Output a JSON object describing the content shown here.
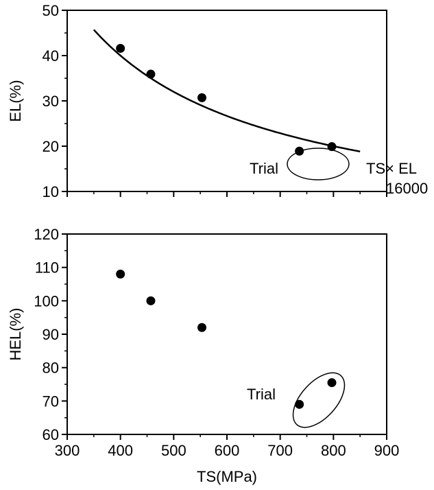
{
  "chart_data": [
    {
      "type": "scatter",
      "panel": "top",
      "xlabel": "",
      "ylabel": "EL(%)",
      "xlim": [
        300,
        900
      ],
      "ylim": [
        10,
        50
      ],
      "x_ticks": [
        300,
        400,
        500,
        600,
        700,
        800,
        900
      ],
      "y_ticks": [
        10,
        20,
        30,
        40,
        50
      ],
      "y_tick_labels": [
        "10",
        "20",
        "30",
        "40",
        "50"
      ],
      "grid": false,
      "series": [
        {
          "kind": "points",
          "color": "#000000",
          "x": [
            400,
            457,
            553,
            736,
            797
          ],
          "y": [
            41.6,
            35.9,
            30.7,
            18.9,
            19.9
          ]
        },
        {
          "kind": "curve",
          "color": "#000000",
          "equation": "EL = 16000 / TS",
          "x_range": [
            350,
            850
          ]
        }
      ],
      "annotations": [
        {
          "text": "Trial",
          "type": "ellipse-group",
          "x": [
            736,
            797
          ],
          "y": [
            18.9,
            19.9
          ]
        },
        {
          "text_line1": "TS× EL",
          "text_line2": "16000",
          "type": "curve-label"
        }
      ]
    },
    {
      "type": "scatter",
      "panel": "bottom",
      "xlabel": "TS(MPa)",
      "ylabel": "HEL(%)",
      "xlim": [
        300,
        900
      ],
      "ylim": [
        60,
        120
      ],
      "x_ticks": [
        300,
        400,
        500,
        600,
        700,
        800,
        900
      ],
      "x_tick_labels": [
        "300",
        "400",
        "500",
        "600",
        "700",
        "800",
        "900"
      ],
      "y_ticks": [
        60,
        70,
        80,
        90,
        100,
        110,
        120
      ],
      "y_tick_labels": [
        "60",
        "70",
        "80",
        "90",
        "100",
        "110",
        "120"
      ],
      "grid": false,
      "series": [
        {
          "kind": "points",
          "color": "#000000",
          "x": [
            400,
            457,
            553,
            736,
            797
          ],
          "y": [
            108,
            100,
            92,
            69,
            75.5
          ]
        }
      ],
      "annotations": [
        {
          "text": "Trial",
          "type": "ellipse-group",
          "x": [
            736,
            797
          ],
          "y": [
            69,
            75.5
          ]
        }
      ]
    }
  ]
}
